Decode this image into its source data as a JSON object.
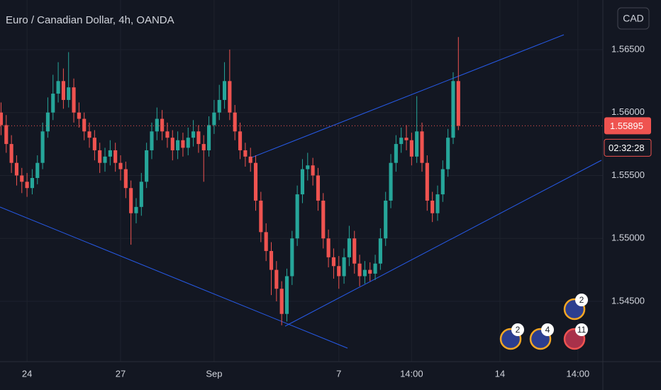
{
  "chart_data": {
    "type": "candlestick",
    "title": "Euro / Canadian Dollar, 4h, OANDA",
    "currency": "CAD",
    "up_color": "#26a69a",
    "down_color": "#ef5350",
    "open": [
      1.56,
      1.559,
      1.5575,
      1.556,
      1.555,
      1.5545,
      1.554,
      1.5548,
      1.556,
      1.5585,
      1.56,
      1.5615,
      1.5625,
      1.561,
      1.562,
      1.56,
      1.5595,
      1.5585,
      1.558,
      1.557,
      1.556,
      1.5565,
      1.557,
      1.556,
      1.5555,
      1.554,
      1.552,
      1.5525,
      1.5545,
      1.557,
      1.5585,
      1.5595,
      1.5585,
      1.558,
      1.557,
      1.5578,
      1.5572,
      1.558,
      1.5585,
      1.5575,
      1.557,
      1.559,
      1.56,
      1.561,
      1.5625,
      1.56,
      1.5585,
      1.557,
      1.5565,
      1.556,
      1.553,
      1.5505,
      1.549,
      1.5475,
      1.546,
      1.544,
      1.547,
      1.55,
      1.5535,
      1.5555,
      1.5558,
      1.555,
      1.553,
      1.55,
      1.5485,
      1.5478,
      1.547,
      1.5485,
      1.55,
      1.548,
      1.547,
      1.5475,
      1.5472,
      1.548,
      1.55,
      1.553,
      1.556,
      1.5575,
      1.558,
      1.5578,
      1.5565,
      1.5585,
      1.556,
      1.553,
      1.552,
      1.5535,
      1.5555,
      1.558,
      1.5625
    ],
    "high": [
      1.5608,
      1.5598,
      1.5582,
      1.5566,
      1.5556,
      1.5552,
      1.5555,
      1.5566,
      1.5592,
      1.5612,
      1.563,
      1.564,
      1.5635,
      1.5648,
      1.5627,
      1.5608,
      1.56,
      1.5592,
      1.5586,
      1.5576,
      1.5572,
      1.5578,
      1.5576,
      1.5566,
      1.5561,
      1.5546,
      1.5532,
      1.5552,
      1.5576,
      1.5592,
      1.5604,
      1.5602,
      1.5592,
      1.5586,
      1.5585,
      1.5584,
      1.5588,
      1.5594,
      1.559,
      1.5582,
      1.5597,
      1.561,
      1.5622,
      1.564,
      1.565,
      1.5606,
      1.5592,
      1.5576,
      1.5572,
      1.5566,
      1.5537,
      1.5512,
      1.5497,
      1.5482,
      1.5466,
      1.5476,
      1.5506,
      1.5542,
      1.5563,
      1.5568,
      1.5564,
      1.5556,
      1.5536,
      1.5507,
      1.5492,
      1.5486,
      1.5492,
      1.551,
      1.5506,
      1.5487,
      1.5482,
      1.5481,
      1.5487,
      1.5508,
      1.5537,
      1.5567,
      1.5582,
      1.5588,
      1.559,
      1.5584,
      1.5613,
      1.5592,
      1.5566,
      1.5537,
      1.5542,
      1.5562,
      1.5587,
      1.5632,
      1.566
    ],
    "low": [
      1.5582,
      1.5568,
      1.5552,
      1.5542,
      1.5536,
      1.5533,
      1.5535,
      1.5543,
      1.5555,
      1.558,
      1.5594,
      1.5608,
      1.5603,
      1.5604,
      1.5592,
      1.5588,
      1.5578,
      1.5572,
      1.5562,
      1.5552,
      1.5553,
      1.5558,
      1.5553,
      1.5546,
      1.5532,
      1.5495,
      1.5512,
      1.5518,
      1.554,
      1.5563,
      1.5578,
      1.5578,
      1.5572,
      1.5562,
      1.5563,
      1.5565,
      1.5566,
      1.5573,
      1.5568,
      1.5545,
      1.5565,
      1.5583,
      1.5594,
      1.5603,
      1.5594,
      1.5578,
      1.5563,
      1.5557,
      1.5553,
      1.5522,
      1.5497,
      1.5482,
      1.5455,
      1.545,
      1.5431,
      1.5434,
      1.5463,
      1.5494,
      1.5528,
      1.5546,
      1.5542,
      1.5522,
      1.5492,
      1.5477,
      1.5468,
      1.546,
      1.5464,
      1.5478,
      1.5472,
      1.5462,
      1.5464,
      1.5466,
      1.5467,
      1.5475,
      1.5494,
      1.5524,
      1.5553,
      1.5568,
      1.557,
      1.5558,
      1.556,
      1.5553,
      1.5522,
      1.5513,
      1.5514,
      1.5529,
      1.5549,
      1.5575,
      1.5586
    ],
    "close": [
      1.559,
      1.5575,
      1.556,
      1.555,
      1.5545,
      1.554,
      1.5548,
      1.556,
      1.5585,
      1.56,
      1.5615,
      1.5625,
      1.561,
      1.562,
      1.56,
      1.5595,
      1.5585,
      1.558,
      1.557,
      1.556,
      1.5565,
      1.557,
      1.556,
      1.5555,
      1.554,
      1.552,
      1.5525,
      1.5545,
      1.557,
      1.5585,
      1.5595,
      1.5585,
      1.558,
      1.557,
      1.5578,
      1.5572,
      1.558,
      1.5585,
      1.5575,
      1.557,
      1.559,
      1.56,
      1.561,
      1.5625,
      1.56,
      1.5585,
      1.557,
      1.5565,
      1.556,
      1.553,
      1.5505,
      1.549,
      1.5475,
      1.546,
      1.544,
      1.547,
      1.55,
      1.5535,
      1.5555,
      1.5558,
      1.555,
      1.553,
      1.55,
      1.5485,
      1.5478,
      1.547,
      1.5485,
      1.55,
      1.548,
      1.547,
      1.5475,
      1.5472,
      1.548,
      1.55,
      1.553,
      1.556,
      1.5575,
      1.558,
      1.5578,
      1.5565,
      1.5585,
      1.556,
      1.553,
      1.552,
      1.5535,
      1.5555,
      1.558,
      1.5625,
      1.55895
    ],
    "xlim": [
      -0.2,
      115.8
    ],
    "xticks": [
      {
        "value": 5,
        "label": "24"
      },
      {
        "value": 23,
        "label": "27"
      },
      {
        "value": 41,
        "label": "Sep"
      },
      {
        "value": 65,
        "label": "7"
      },
      {
        "value": 79,
        "label": "14:00"
      },
      {
        "value": 96,
        "label": "14"
      },
      {
        "value": 111,
        "label": "14:00"
      }
    ],
    "ylim": [
      1.54021,
      1.56894
    ],
    "yticks": [
      {
        "value": 1.545,
        "label": "1.54500"
      },
      {
        "value": 1.55,
        "label": "1.55000"
      },
      {
        "value": 1.555,
        "label": "1.55500"
      },
      {
        "value": 1.56,
        "label": "1.56000"
      },
      {
        "value": 1.565,
        "label": "1.56500"
      }
    ],
    "grid": true,
    "last_price": 1.55895,
    "countdown": "02:32:28",
    "events": [
      2,
      4,
      2,
      11
    ]
  }
}
